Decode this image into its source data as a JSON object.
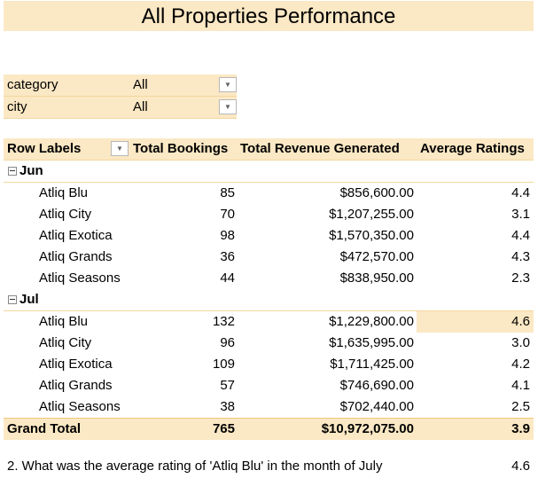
{
  "title": "All Properties Performance",
  "filters": [
    {
      "label": "category",
      "value": "All"
    },
    {
      "label": "city",
      "value": "All"
    }
  ],
  "pivot": {
    "headers": {
      "row_labels": "Row Labels",
      "bookings": "Total Bookings",
      "revenue": "Total Revenue Generated",
      "ratings": "Average Ratings"
    },
    "months": [
      {
        "name": "Jun",
        "rows": [
          {
            "property": "Atliq Blu",
            "bookings": "85",
            "revenue": "$856,600.00",
            "rating": "4.4"
          },
          {
            "property": "Atliq City",
            "bookings": "70",
            "revenue": "$1,207,255.00",
            "rating": "3.1"
          },
          {
            "property": "Atliq Exotica",
            "bookings": "98",
            "revenue": "$1,570,350.00",
            "rating": "4.4"
          },
          {
            "property": "Atliq Grands",
            "bookings": "36",
            "revenue": "$472,570.00",
            "rating": "4.3"
          },
          {
            "property": "Atliq Seasons",
            "bookings": "44",
            "revenue": "$838,950.00",
            "rating": "2.3"
          }
        ]
      },
      {
        "name": "Jul",
        "rows": [
          {
            "property": "Atliq Blu",
            "bookings": "132",
            "revenue": "$1,229,800.00",
            "rating": "4.6"
          },
          {
            "property": "Atliq City",
            "bookings": "96",
            "revenue": "$1,635,995.00",
            "rating": "3.0"
          },
          {
            "property": "Atliq Exotica",
            "bookings": "109",
            "revenue": "$1,711,425.00",
            "rating": "4.2"
          },
          {
            "property": "Atliq Grands",
            "bookings": "57",
            "revenue": "$746,690.00",
            "rating": "4.1"
          },
          {
            "property": "Atliq Seasons",
            "bookings": "38",
            "revenue": "$702,440.00",
            "rating": "2.5"
          }
        ]
      }
    ],
    "grand_total": {
      "label": "Grand Total",
      "bookings": "765",
      "revenue": "$10,972,075.00",
      "rating": "3.9"
    }
  },
  "question": {
    "text": "2. What was the average rating of 'Atliq Blu' in the month of July",
    "answer": "4.6"
  },
  "colors": {
    "header_fill": "#fbe8c4",
    "border": "#f3d79f"
  }
}
